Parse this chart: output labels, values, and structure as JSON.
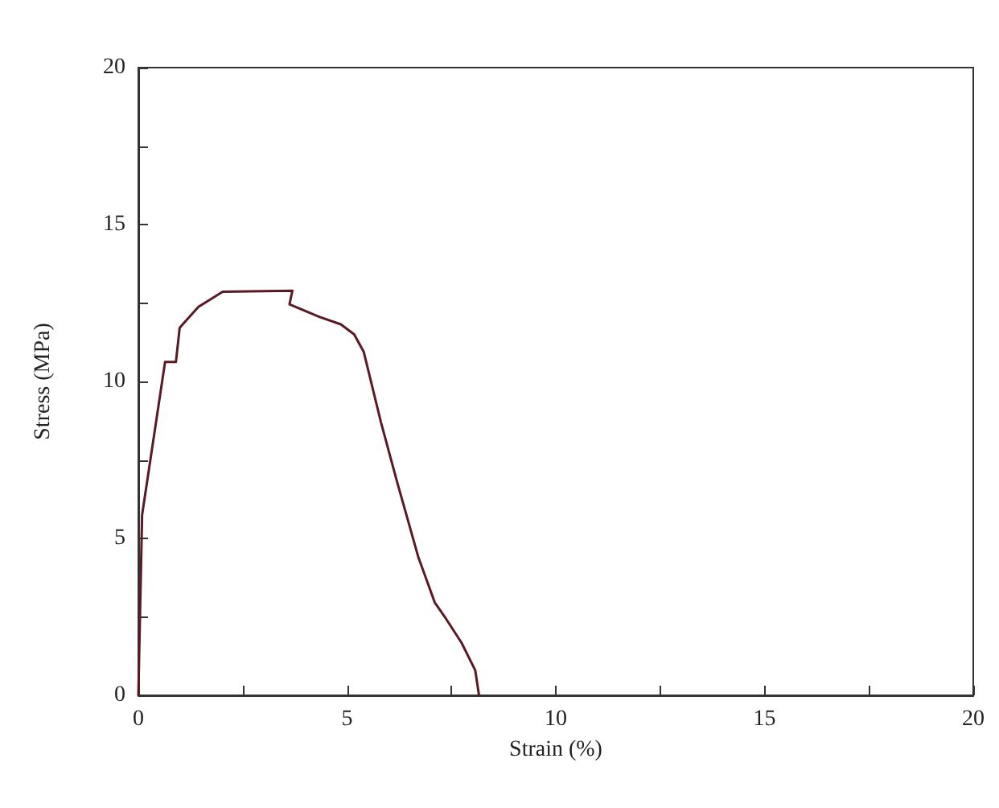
{
  "chart_data": {
    "type": "line",
    "xlabel": "Strain (%)",
    "ylabel": "Stress (MPa)",
    "series": [
      {
        "color": "#5a1a23",
        "x": [
          0,
          0.09,
          0.28,
          0.64,
          0.9,
          0.99,
          1.44,
          2.02,
          3.69,
          3.62,
          4.33,
          4.85,
          5.17,
          5.4,
          5.81,
          6.2,
          6.71,
          7.1,
          7.35,
          7.74,
          8.07,
          8.16
        ],
        "values": [
          0,
          5.75,
          7.43,
          10.62,
          10.62,
          11.71,
          12.38,
          12.86,
          12.89,
          12.46,
          12.06,
          11.82,
          11.5,
          10.94,
          8.71,
          6.79,
          4.39,
          2.96,
          2.48,
          1.68,
          0.8,
          0
        ]
      }
    ],
    "xlim": [
      0,
      20
    ],
    "ylim": [
      0,
      20
    ],
    "xticks": [
      0,
      {
        "value": 2.5,
        "label": null
      },
      5,
      {
        "value": 7.5,
        "label": null
      },
      10,
      {
        "value": 12.5,
        "label": null
      },
      15,
      {
        "value": 17.5,
        "label": null
      },
      20
    ],
    "yticks": [
      0,
      {
        "value": 2.5,
        "label": null
      },
      5,
      {
        "value": 7.5,
        "label": null
      },
      10,
      {
        "value": 12.5,
        "label": null
      },
      15,
      {
        "value": 17.5,
        "label": null
      },
      20
    ],
    "grid": false,
    "marker": "none",
    "line_style": "solid"
  }
}
